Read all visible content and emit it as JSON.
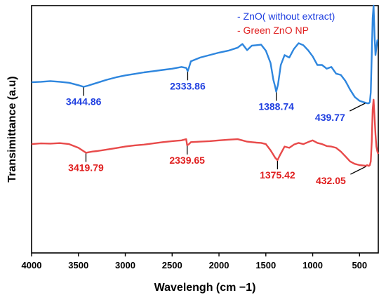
{
  "chart_data": {
    "type": "line",
    "xlabel": "Wavelengh (cm −1)",
    "ylabel": "Transimittance (a.u)",
    "xlim": [
      4000,
      300
    ],
    "x_reversed": true,
    "xticks": [
      4000,
      3500,
      3000,
      2500,
      2000,
      1500,
      1000,
      500
    ],
    "yticks_shown": false,
    "ylim": [
      0,
      1
    ],
    "legend_position": "top-right",
    "series": [
      {
        "name": "- ZnO( without extract)",
        "color": "#1f3fe0",
        "line_color": "#2e86de",
        "x": [
          4000,
          3900,
          3800,
          3700,
          3600,
          3500,
          3444.86,
          3400,
          3300,
          3200,
          3100,
          3000,
          2900,
          2800,
          2700,
          2600,
          2500,
          2400,
          2350,
          2333.86,
          2320,
          2300,
          2200,
          2100,
          2000,
          1900,
          1800,
          1750,
          1700,
          1650,
          1600,
          1550,
          1500,
          1450,
          1420,
          1400,
          1388.74,
          1370,
          1340,
          1300,
          1250,
          1200,
          1150,
          1100,
          1050,
          1000,
          950,
          900,
          850,
          800,
          750,
          700,
          650,
          600,
          550,
          500,
          460,
          439.77,
          420,
          400,
          390,
          380,
          370,
          360,
          350,
          340,
          330,
          320,
          310,
          300
        ],
        "y": [
          0.69,
          0.692,
          0.695,
          0.692,
          0.688,
          0.678,
          0.672,
          0.676,
          0.688,
          0.7,
          0.71,
          0.718,
          0.724,
          0.73,
          0.735,
          0.74,
          0.745,
          0.752,
          0.748,
          0.735,
          0.75,
          0.775,
          0.79,
          0.8,
          0.81,
          0.818,
          0.83,
          0.845,
          0.82,
          0.838,
          0.84,
          0.842,
          0.818,
          0.768,
          0.7,
          0.672,
          0.652,
          0.68,
          0.76,
          0.8,
          0.79,
          0.825,
          0.848,
          0.84,
          0.82,
          0.795,
          0.76,
          0.76,
          0.745,
          0.752,
          0.725,
          0.72,
          0.695,
          0.66,
          0.63,
          0.615,
          0.61,
          0.608,
          0.605,
          0.605,
          0.61,
          0.65,
          0.8,
          0.95,
          1.0,
          0.88,
          0.8,
          0.83,
          0.86,
          0.86
        ]
      },
      {
        "name": "- Green ZnO NP",
        "color": "#e02020",
        "line_color": "#e84a4a",
        "x": [
          4000,
          3900,
          3800,
          3700,
          3600,
          3500,
          3419.79,
          3350,
          3300,
          3200,
          3100,
          3000,
          2900,
          2800,
          2700,
          2600,
          2500,
          2400,
          2350,
          2339.65,
          2320,
          2300,
          2200,
          2100,
          2000,
          1900,
          1800,
          1750,
          1700,
          1650,
          1600,
          1550,
          1500,
          1450,
          1400,
          1375.42,
          1350,
          1300,
          1250,
          1200,
          1150,
          1100,
          1050,
          1000,
          950,
          900,
          850,
          800,
          750,
          700,
          650,
          600,
          550,
          500,
          450,
          432.05,
          420,
          400,
          390,
          380,
          370,
          360,
          350,
          340,
          330,
          320,
          310,
          300
        ],
        "y": [
          0.44,
          0.443,
          0.442,
          0.444,
          0.44,
          0.425,
          0.405,
          0.41,
          0.412,
          0.418,
          0.424,
          0.43,
          0.435,
          0.438,
          0.443,
          0.448,
          0.452,
          0.455,
          0.46,
          0.435,
          0.44,
          0.448,
          0.45,
          0.452,
          0.455,
          0.458,
          0.46,
          0.455,
          0.45,
          0.448,
          0.446,
          0.445,
          0.44,
          0.415,
          0.385,
          0.375,
          0.395,
          0.43,
          0.425,
          0.438,
          0.445,
          0.44,
          0.448,
          0.455,
          0.445,
          0.44,
          0.432,
          0.43,
          0.425,
          0.41,
          0.39,
          0.37,
          0.36,
          0.355,
          0.353,
          0.352,
          0.355,
          0.352,
          0.355,
          0.37,
          0.45,
          0.58,
          0.62,
          0.55,
          0.48,
          0.43,
          0.41,
          0.4
        ]
      }
    ],
    "annotations": [
      {
        "text": "3444.86",
        "series": 0,
        "x": 3444.86,
        "y": 0.672,
        "anchor": "below"
      },
      {
        "text": "2333.86",
        "series": 0,
        "x": 2333.86,
        "y": 0.735,
        "anchor": "below"
      },
      {
        "text": "1388.74",
        "series": 0,
        "x": 1388.74,
        "y": 0.652,
        "anchor": "below"
      },
      {
        "text": "439.77",
        "series": 0,
        "x": 439.77,
        "y": 0.608,
        "anchor": "below-left"
      },
      {
        "text": "3419.79",
        "series": 1,
        "x": 3419.79,
        "y": 0.405,
        "anchor": "below"
      },
      {
        "text": "2339.65",
        "series": 1,
        "x": 2339.65,
        "y": 0.435,
        "anchor": "below"
      },
      {
        "text": "1375.42",
        "series": 1,
        "x": 1375.42,
        "y": 0.375,
        "anchor": "below"
      },
      {
        "text": "432.05",
        "series": 1,
        "x": 432.05,
        "y": 0.352,
        "anchor": "below-left"
      }
    ]
  }
}
